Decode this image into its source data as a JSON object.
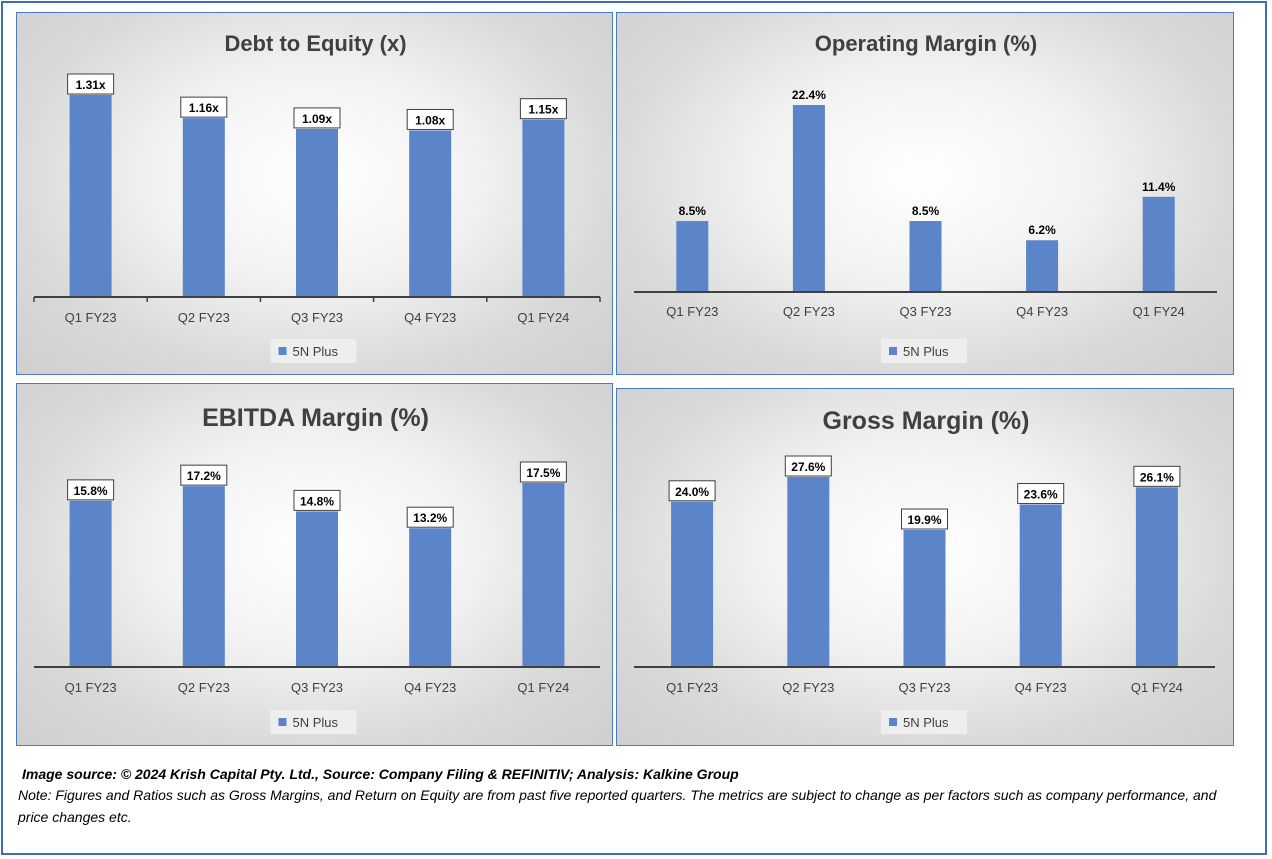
{
  "chart_data": [
    {
      "id": "debt-to-equity",
      "type": "bar",
      "title": "Debt to Equity (x)",
      "categories": [
        "Q1 FY23",
        "Q2 FY23",
        "Q3 FY23",
        "Q4 FY23",
        "Q1 FY24"
      ],
      "series": [
        {
          "name": "5N Plus",
          "values": [
            1.31,
            1.16,
            1.09,
            1.08,
            1.15
          ],
          "labels": [
            "1.31x",
            "1.16x",
            "1.09x",
            "1.08x",
            "1.15x"
          ]
        }
      ],
      "ylim": [
        0,
        1.31
      ],
      "grid": false,
      "legend": "bottom",
      "data_label_style": "boxed",
      "bar_color": "#5b84c9"
    },
    {
      "id": "operating-margin",
      "type": "bar",
      "title": "Operating Margin (%)",
      "categories": [
        "Q1 FY23",
        "Q2 FY23",
        "Q3 FY23",
        "Q4 FY23",
        "Q1 FY24"
      ],
      "series": [
        {
          "name": "5N Plus",
          "values": [
            8.5,
            22.4,
            8.5,
            6.2,
            11.4
          ],
          "labels": [
            "8.5%",
            "22.4%",
            "8.5%",
            "6.2%",
            "11.4%"
          ]
        }
      ],
      "ylim": [
        0,
        22.4
      ],
      "grid": false,
      "legend": "bottom",
      "data_label_style": "plain",
      "bar_color": "#5b84c9"
    },
    {
      "id": "ebitda-margin",
      "type": "bar",
      "title": "EBITDA Margin (%)",
      "categories": [
        "Q1 FY23",
        "Q2 FY23",
        "Q3 FY23",
        "Q4 FY23",
        "Q1 FY24"
      ],
      "series": [
        {
          "name": "5N Plus",
          "values": [
            15.8,
            17.2,
            14.8,
            13.2,
            17.5
          ],
          "labels": [
            "15.8%",
            "17.2%",
            "14.8%",
            "13.2%",
            "17.5%"
          ]
        }
      ],
      "ylim": [
        0,
        17.5
      ],
      "grid": false,
      "legend": "bottom",
      "data_label_style": "boxed",
      "bar_color": "#5b84c9"
    },
    {
      "id": "gross-margin",
      "type": "bar",
      "title": "Gross Margin (%)",
      "categories": [
        "Q1 FY23",
        "Q2 FY23",
        "Q3 FY23",
        "Q4 FY23",
        "Q1 FY24"
      ],
      "series": [
        {
          "name": "5N Plus",
          "values": [
            24.0,
            27.6,
            19.9,
            23.6,
            26.1
          ],
          "labels": [
            "24.0%",
            "27.6%",
            "19.9%",
            "23.6%",
            "26.1%"
          ]
        }
      ],
      "ylim": [
        0,
        27.6
      ],
      "grid": false,
      "legend": "bottom",
      "data_label_style": "boxed",
      "bar_color": "#5b84c9"
    }
  ],
  "footer": {
    "source": "Image source: © 2024 Krish Capital Pty. Ltd., Source: Company Filing & REFINITIV; Analysis: Kalkine Group",
    "note": "Note: Figures and Ratios such as  Gross Margins, and Return on Equity are from past  five reported  quarters. The metrics are subject to change as per factors such as company performance, and price changes etc."
  },
  "colors": {
    "bar": "#5b84c9",
    "frame": "#3b6fb3"
  }
}
